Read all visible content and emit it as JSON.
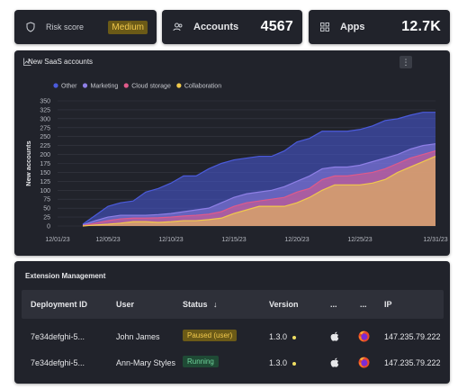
{
  "stats": {
    "risk": {
      "label": "Risk score",
      "value": "Medium",
      "icon": "shield-icon"
    },
    "accounts": {
      "label": "Accounts",
      "value": "4567",
      "icon": "users-icon"
    },
    "apps": {
      "label": "Apps",
      "value": "12.7K",
      "icon": "grid-icon"
    }
  },
  "chart": {
    "title": "New SaaS accounts",
    "menu_glyph": "⋮"
  },
  "chart_data": {
    "type": "area",
    "title": "New SaaS accounts",
    "ylabel": "New accounts",
    "xlabel": "",
    "ylim": [
      0,
      350
    ],
    "yticks": [
      0,
      25,
      50,
      75,
      100,
      125,
      150,
      175,
      200,
      225,
      250,
      275,
      300,
      325,
      350
    ],
    "xtick_labels": [
      "12/01/23",
      "12/05/23",
      "12/10/23",
      "12/15/23",
      "12/20/23",
      "12/25/23",
      "12/31/23"
    ],
    "xtick_days": [
      1,
      5,
      10,
      15,
      20,
      25,
      31
    ],
    "grid": true,
    "legend_position": "top-left",
    "x": [
      3,
      4,
      5,
      6,
      7,
      8,
      9,
      10,
      11,
      12,
      13,
      14,
      15,
      16,
      17,
      18,
      19,
      20,
      21,
      22,
      23,
      24,
      25,
      26,
      27,
      28,
      29,
      30,
      31
    ],
    "series": [
      {
        "name": "Other",
        "color": "#4b5bdc",
        "values": [
          5,
          30,
          55,
          65,
          70,
          95,
          105,
          120,
          140,
          140,
          160,
          175,
          185,
          190,
          195,
          195,
          210,
          235,
          245,
          265,
          265,
          265,
          270,
          280,
          295,
          300,
          310,
          318,
          318
        ]
      },
      {
        "name": "Marketing",
        "color": "#8e7fe6",
        "values": [
          3,
          15,
          25,
          30,
          30,
          30,
          32,
          35,
          40,
          45,
          50,
          65,
          80,
          90,
          95,
          100,
          110,
          125,
          140,
          160,
          165,
          165,
          170,
          180,
          190,
          200,
          215,
          225,
          230
        ]
      },
      {
        "name": "Cloud storage",
        "color": "#e05a8a",
        "values": [
          1,
          8,
          15,
          20,
          22,
          22,
          23,
          25,
          28,
          30,
          33,
          40,
          55,
          65,
          70,
          75,
          80,
          95,
          105,
          130,
          140,
          140,
          145,
          150,
          160,
          175,
          190,
          200,
          210
        ]
      },
      {
        "name": "Collaboration",
        "color": "#f0c94c",
        "values": [
          0,
          3,
          5,
          8,
          12,
          12,
          10,
          12,
          15,
          15,
          18,
          22,
          35,
          45,
          55,
          55,
          55,
          65,
          80,
          100,
          115,
          115,
          115,
          120,
          130,
          150,
          165,
          180,
          195
        ]
      }
    ]
  },
  "ext": {
    "title": "Extension Management",
    "headers": [
      "Deployment ID",
      "User",
      "Status",
      "Version",
      "...",
      "...",
      "IP"
    ],
    "sort_glyph": "↓",
    "rows": [
      {
        "id": "7e34defghi-5...",
        "user": "John James",
        "status": "Paused (user)",
        "status_kind": "paused",
        "version": "1.3.0",
        "ip": "147.235.79.222"
      },
      {
        "id": "7e34defghi-5...",
        "user": "Ann-Mary Styles",
        "status": "Running",
        "status_kind": "running",
        "version": "1.3.0",
        "ip": "147.235.79.222"
      }
    ]
  }
}
